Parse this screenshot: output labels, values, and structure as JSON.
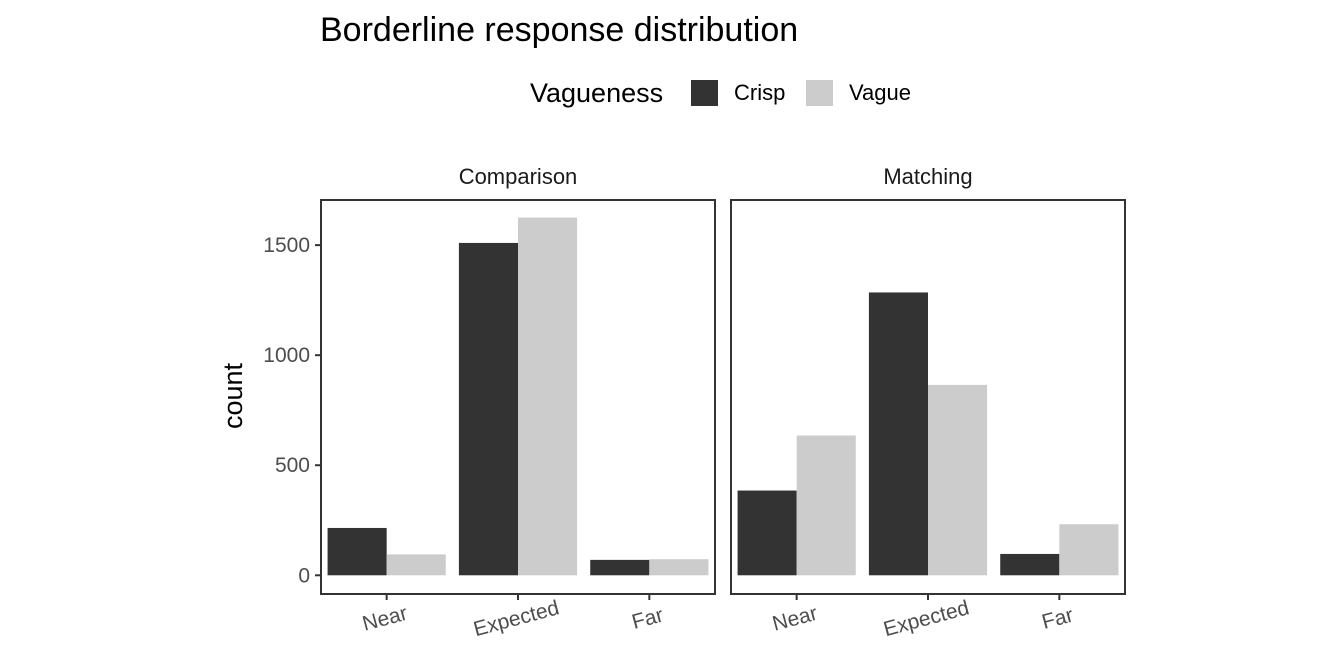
{
  "chart_data": {
    "type": "bar",
    "title": "Borderline response distribution",
    "ylabel": "count",
    "xlabel": "",
    "categories": [
      "Near",
      "Expected",
      "Far"
    ],
    "legend": {
      "title": "Vagueness",
      "position": "top"
    },
    "series_colors": {
      "Crisp": "#333333",
      "Vague": "#cccccc"
    },
    "ylim": [
      -85,
      1705
    ],
    "yticks": [
      0,
      500,
      1000,
      1500
    ],
    "grid": false,
    "facets": [
      {
        "name": "Comparison",
        "series": [
          {
            "name": "Crisp",
            "values": [
              215,
              1510,
              70
            ]
          },
          {
            "name": "Vague",
            "values": [
              95,
              1625,
              73
            ]
          }
        ]
      },
      {
        "name": "Matching",
        "series": [
          {
            "name": "Crisp",
            "values": [
              385,
              1285,
              97
            ]
          },
          {
            "name": "Vague",
            "values": [
              635,
              865,
              232
            ]
          }
        ]
      }
    ]
  }
}
